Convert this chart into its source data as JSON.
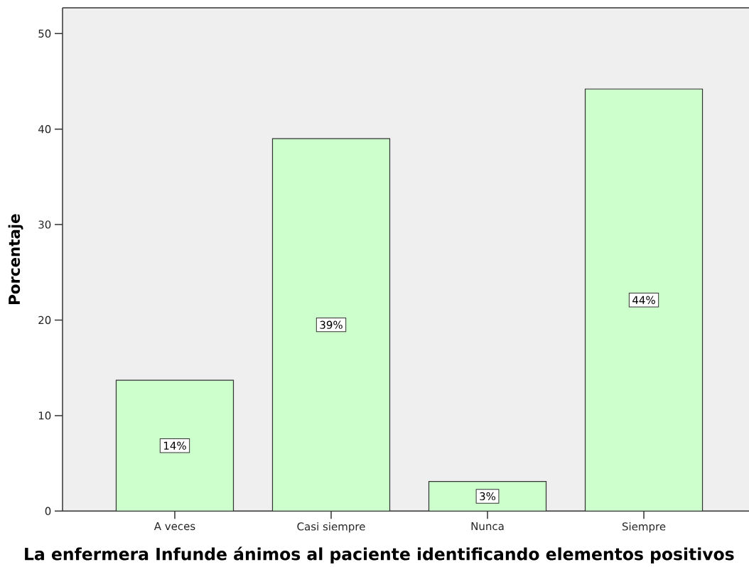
{
  "chart_data": {
    "type": "bar",
    "xlabel": "La enfermera Infunde ánimos al paciente identificando elementos positivos",
    "ylabel": "Porcentaje",
    "categories": [
      "A veces",
      "Casi siempre",
      "Nunca",
      "Siempre"
    ],
    "values": [
      13.7,
      39.0,
      3.1,
      44.2
    ],
    "value_labels": [
      "14%",
      "39%",
      "3%",
      "44%"
    ],
    "color": "#ccffcc",
    "ylim": [
      0,
      52.7
    ],
    "yticks": [
      0,
      10,
      20,
      30,
      40,
      50
    ]
  }
}
